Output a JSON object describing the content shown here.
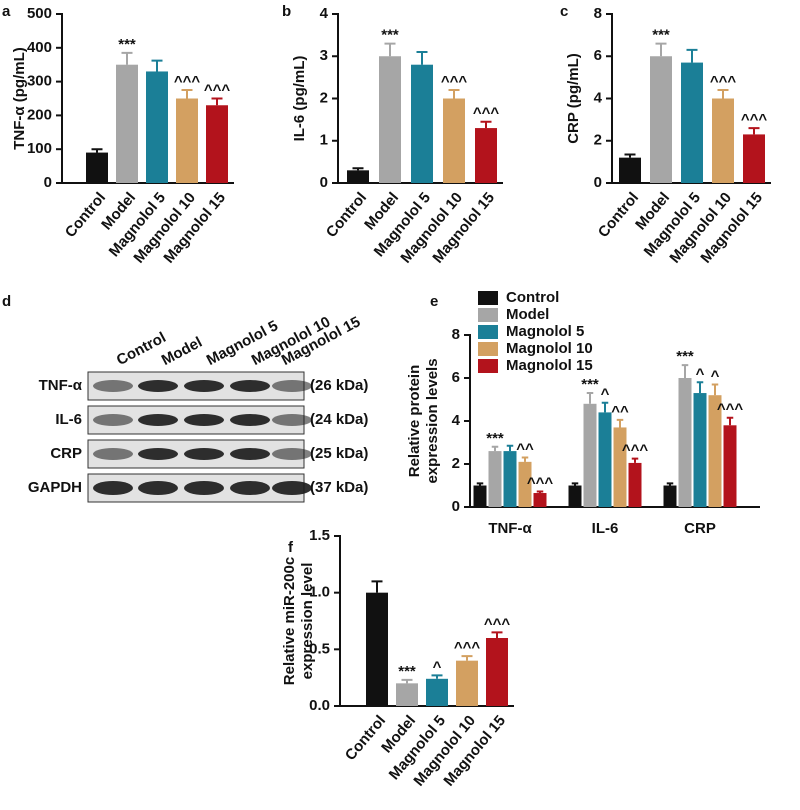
{
  "chart_data": [
    {
      "type": "bar",
      "panel": "a",
      "ylabel": "TNF-α (pg/mL)",
      "categories": [
        "Control",
        "Model",
        "Magnolol 5",
        "Magnolol 10",
        "Magnolol 15"
      ],
      "values": [
        90,
        350,
        330,
        250,
        230
      ],
      "errors": [
        10,
        35,
        32,
        25,
        20
      ],
      "annotations": [
        null,
        "***",
        null,
        "^^^",
        "^^^"
      ],
      "colors": [
        "#111111",
        "#a6a6a6",
        "#1b7f97",
        "#d3a061",
        "#b3131c"
      ],
      "ylim": [
        0,
        500
      ],
      "yticks": [
        0,
        100,
        200,
        300,
        400,
        500
      ]
    },
    {
      "type": "bar",
      "panel": "b",
      "ylabel": "IL-6 (pg/mL)",
      "categories": [
        "Control",
        "Model",
        "Magnolol 5",
        "Magnolol 10",
        "Magnolol 15"
      ],
      "values": [
        0.3,
        3.0,
        2.8,
        2.0,
        1.3
      ],
      "errors": [
        0.05,
        0.3,
        0.3,
        0.2,
        0.15
      ],
      "annotations": [
        null,
        "***",
        null,
        "^^^",
        "^^^"
      ],
      "colors": [
        "#111111",
        "#a6a6a6",
        "#1b7f97",
        "#d3a061",
        "#b3131c"
      ],
      "ylim": [
        0,
        4
      ],
      "yticks": [
        0,
        1,
        2,
        3,
        4
      ]
    },
    {
      "type": "bar",
      "panel": "c",
      "ylabel": "CRP (pg/mL)",
      "categories": [
        "Control",
        "Model",
        "Magnolol 5",
        "Magnolol 10",
        "Magnolol 15"
      ],
      "values": [
        1.2,
        6.0,
        5.7,
        4.0,
        2.3
      ],
      "errors": [
        0.15,
        0.6,
        0.6,
        0.4,
        0.3
      ],
      "annotations": [
        null,
        "***",
        null,
        "^^^",
        "^^^"
      ],
      "colors": [
        "#111111",
        "#a6a6a6",
        "#1b7f97",
        "#d3a061",
        "#b3131c"
      ],
      "ylim": [
        0,
        8
      ],
      "yticks": [
        0,
        2,
        4,
        6,
        8
      ]
    },
    {
      "type": "grouped-bar",
      "panel": "e",
      "ylabel": [
        "Relative protein",
        "expression levels"
      ],
      "categories": [
        "TNF-α",
        "IL-6",
        "CRP"
      ],
      "series": [
        {
          "name": "Control",
          "color": "#111111",
          "values": [
            1,
            1,
            1
          ],
          "errors": [
            0.1,
            0.1,
            0.1
          ],
          "annotations": [
            null,
            null,
            null
          ]
        },
        {
          "name": "Model",
          "color": "#a6a6a6",
          "values": [
            2.6,
            4.8,
            6.0
          ],
          "errors": [
            0.2,
            0.5,
            0.6
          ],
          "annotations": [
            "***",
            "***",
            "***"
          ]
        },
        {
          "name": "Magnolol 5",
          "color": "#1b7f97",
          "values": [
            2.6,
            4.4,
            5.3
          ],
          "errors": [
            0.25,
            0.45,
            0.5
          ],
          "annotations": [
            null,
            "^",
            "^"
          ]
        },
        {
          "name": "Magnolol 10",
          "color": "#d3a061",
          "values": [
            2.1,
            3.7,
            5.2
          ],
          "errors": [
            0.2,
            0.35,
            0.5
          ],
          "annotations": [
            "^^",
            "^^",
            "^"
          ]
        },
        {
          "name": "Magnolol 15",
          "color": "#b3131c",
          "values": [
            0.65,
            2.05,
            3.8
          ],
          "errors": [
            0.07,
            0.2,
            0.35
          ],
          "annotations": [
            "^^^",
            "^^^",
            "^^^"
          ]
        }
      ],
      "ylim": [
        0,
        8
      ],
      "yticks": [
        0,
        2,
        4,
        6,
        8
      ],
      "legend": "top-left"
    },
    {
      "type": "bar",
      "panel": "f",
      "ylabel": [
        "Relative miR-200c",
        "expression level"
      ],
      "categories": [
        "Control",
        "Model",
        "Magnolol 5",
        "Magnolol 10",
        "Magnolol 15"
      ],
      "values": [
        1.0,
        0.2,
        0.24,
        0.4,
        0.6
      ],
      "errors": [
        0.1,
        0.03,
        0.03,
        0.04,
        0.05
      ],
      "annotations": [
        null,
        "***",
        "^",
        "^^^",
        "^^^"
      ],
      "colors": [
        "#111111",
        "#a6a6a6",
        "#1b7f97",
        "#d3a061",
        "#b3131c"
      ],
      "ylim": [
        0,
        1.5
      ],
      "yticks": [
        {
          "value": 0,
          "label": "0.0"
        },
        0.5,
        {
          "value": 1,
          "label": "1.0"
        },
        1.5
      ]
    }
  ],
  "blot": {
    "panel": "d",
    "lanes": [
      "Control",
      "Model",
      "Magnolol 5",
      "Magnolol 10",
      "Magnolol 15"
    ],
    "rows": [
      {
        "label": "TNF-α",
        "size": "(26 kDa)"
      },
      {
        "label": "IL-6",
        "size": "(24 kDa)"
      },
      {
        "label": "CRP",
        "size": "(25 kDa)"
      },
      {
        "label": "GAPDH",
        "size": "(37 kDa)"
      }
    ]
  }
}
